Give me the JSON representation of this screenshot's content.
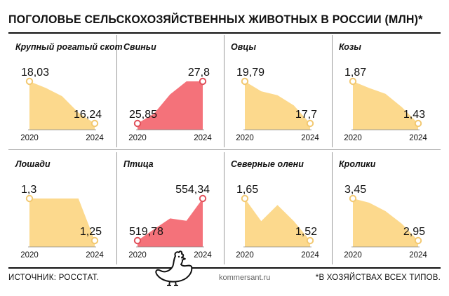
{
  "title": "ПОГОЛОВЬЕ СЕЛЬСКОХОЗЯЙСТВЕННЫХ ЖИВОТНЫХ В РОССИИ (МЛН)*",
  "footer": {
    "source": "ИСТОЧНИК: РОССТАТ.",
    "site": "kommersant.ru",
    "note": "*В ХОЗЯЙСТВАХ ВСЕХ ТИПОВ."
  },
  "colors": {
    "decline": "#fcd98d",
    "growth": "#f4727a",
    "marker_decline": "#f2c870",
    "marker_growth": "#e0505a"
  },
  "icons": {
    "footer_animal": "hen-icon"
  },
  "chart_data": [
    {
      "type": "area",
      "title": "Крупный рогатый скот",
      "x": [
        2020,
        2021,
        2022,
        2023,
        2024
      ],
      "values": [
        18.03,
        17.75,
        17.4,
        16.7,
        16.24
      ],
      "labels": [
        "18,03",
        "16,24"
      ],
      "tick_labels": [
        "2020",
        "2024"
      ],
      "trend": "decline"
    },
    {
      "type": "area",
      "title": "Свиньи",
      "x": [
        2020,
        2021,
        2022,
        2023,
        2024
      ],
      "values": [
        25.85,
        26.3,
        27.2,
        27.8,
        27.8
      ],
      "labels": [
        "25,85",
        "27,8"
      ],
      "tick_labels": [
        "2020",
        "2024"
      ],
      "trend": "growth"
    },
    {
      "type": "area",
      "title": "Овцы",
      "x": [
        2020,
        2021,
        2022,
        2023,
        2024
      ],
      "values": [
        19.79,
        19.3,
        19.1,
        18.6,
        17.7
      ],
      "labels": [
        "19,79",
        "17,7"
      ],
      "tick_labels": [
        "2020",
        "2024"
      ],
      "trend": "decline"
    },
    {
      "type": "area",
      "title": "Козы",
      "x": [
        2020,
        2021,
        2022,
        2023,
        2024
      ],
      "values": [
        1.87,
        1.8,
        1.74,
        1.6,
        1.43
      ],
      "labels": [
        "1,87",
        "1,43"
      ],
      "tick_labels": [
        "2020",
        "2024"
      ],
      "trend": "decline"
    },
    {
      "type": "area",
      "title": "Лошади",
      "x": [
        2020,
        2021,
        2022,
        2023,
        2024
      ],
      "values": [
        1.3,
        1.3,
        1.3,
        1.3,
        1.25
      ],
      "labels": [
        "1,3",
        "1,25"
      ],
      "tick_labels": [
        "2020",
        "2024"
      ],
      "trend": "decline"
    },
    {
      "type": "area",
      "title": "Птица",
      "x": [
        2020,
        2021,
        2022,
        2023,
        2024
      ],
      "values": [
        519.78,
        529,
        538,
        536,
        554.34
      ],
      "labels": [
        "519,78",
        "554,34"
      ],
      "tick_labels": [
        "2020",
        "2024"
      ],
      "trend": "growth"
    },
    {
      "type": "area",
      "title": "Северные олени",
      "x": [
        2020,
        2021,
        2022,
        2023,
        2024
      ],
      "values": [
        1.65,
        1.58,
        1.63,
        1.58,
        1.52
      ],
      "labels": [
        "1,65",
        "1,52"
      ],
      "tick_labels": [
        "2020",
        "2024"
      ],
      "trend": "decline"
    },
    {
      "type": "area",
      "title": "Кролики",
      "x": [
        2020,
        2021,
        2022,
        2023,
        2024
      ],
      "values": [
        3.45,
        3.4,
        3.3,
        3.15,
        2.95
      ],
      "labels": [
        "3,45",
        "2,95"
      ],
      "tick_labels": [
        "2020",
        "2024"
      ],
      "trend": "decline"
    }
  ]
}
